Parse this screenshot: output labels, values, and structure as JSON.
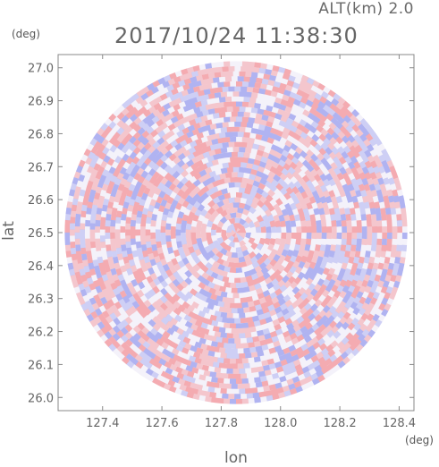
{
  "header": {
    "altitude": "ALT(km) 2.0",
    "timestamp": "2017/10/24 11:38:30"
  },
  "chart_data": {
    "type": "heatmap",
    "title": "2017/10/24 11:38:30",
    "subtitle": "ALT(km) 2.0",
    "xlabel": "lon",
    "ylabel": "lat",
    "xunit": "(deg)",
    "yunit": "(deg)",
    "xlim": [
      127.25,
      128.45
    ],
    "ylim": [
      25.96,
      27.04
    ],
    "xticks": [
      "127.4",
      "127.6",
      "127.8",
      "128.0",
      "128.2",
      "128.4"
    ],
    "xtick_values": [
      127.4,
      127.6,
      127.8,
      128.0,
      128.2,
      128.4
    ],
    "yticks": [
      "26.0",
      "26.1",
      "26.2",
      "26.3",
      "26.4",
      "26.5",
      "26.6",
      "26.7",
      "26.8",
      "26.9",
      "27.0"
    ],
    "ytick_values": [
      26.0,
      26.1,
      26.2,
      26.3,
      26.4,
      26.5,
      26.6,
      26.7,
      26.8,
      26.9,
      27.0
    ],
    "radar_center": [
      127.85,
      26.5
    ],
    "radar_range_deg": [
      0.58,
      0.52
    ],
    "colors": {
      "positive": "#f4a3a8",
      "negative": "#a8acf0",
      "neutral": "#f4f2fa"
    },
    "grid": false
  }
}
